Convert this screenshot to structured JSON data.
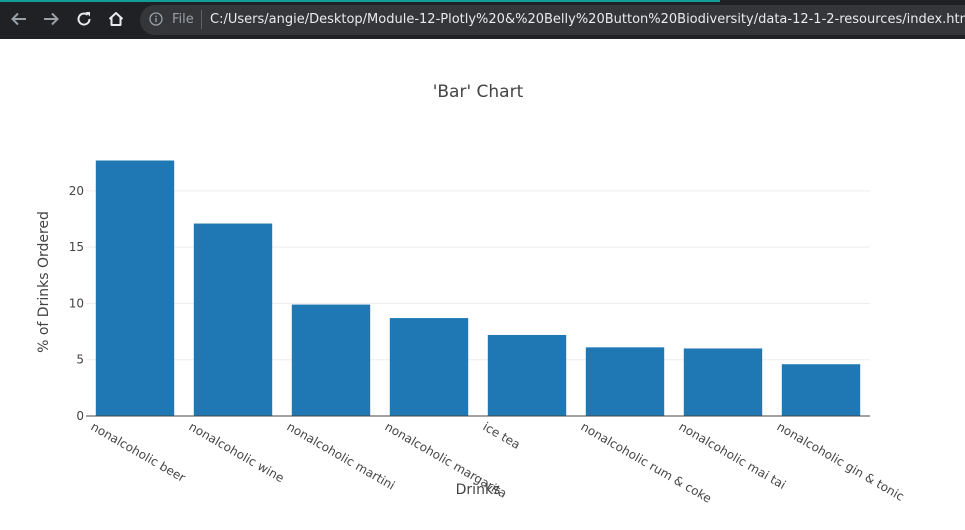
{
  "browser": {
    "file_label": "File",
    "url": "C:/Users/angie/Desktop/Module-12-Plotly%20&%20Belly%20Button%20Biodiversity/data-12-1-2-resources/index.html",
    "colors": {
      "toolbar": "#202124",
      "omnibox": "#35363a",
      "accent": "#0f9d9a"
    }
  },
  "chart_data": {
    "type": "bar",
    "title": "'Bar' Chart",
    "xlabel": "Drinks",
    "ylabel": "% of Drinks Ordered",
    "categories": [
      "nonalcoholic beer",
      "nonalcoholic wine",
      "nonalcoholic martini",
      "nonalcoholic margarita",
      "ice tea",
      "nonalcoholic rum & coke",
      "nonalcoholic mai tai",
      "nonalcoholic gin & tonic"
    ],
    "values": [
      22.7,
      17.1,
      9.9,
      8.7,
      7.2,
      6.1,
      6.0,
      4.6
    ],
    "yticks": [
      0,
      5,
      10,
      15,
      20
    ],
    "ylim": [
      0,
      23.9
    ],
    "grid": true,
    "bar_color": "#1f77b4"
  }
}
